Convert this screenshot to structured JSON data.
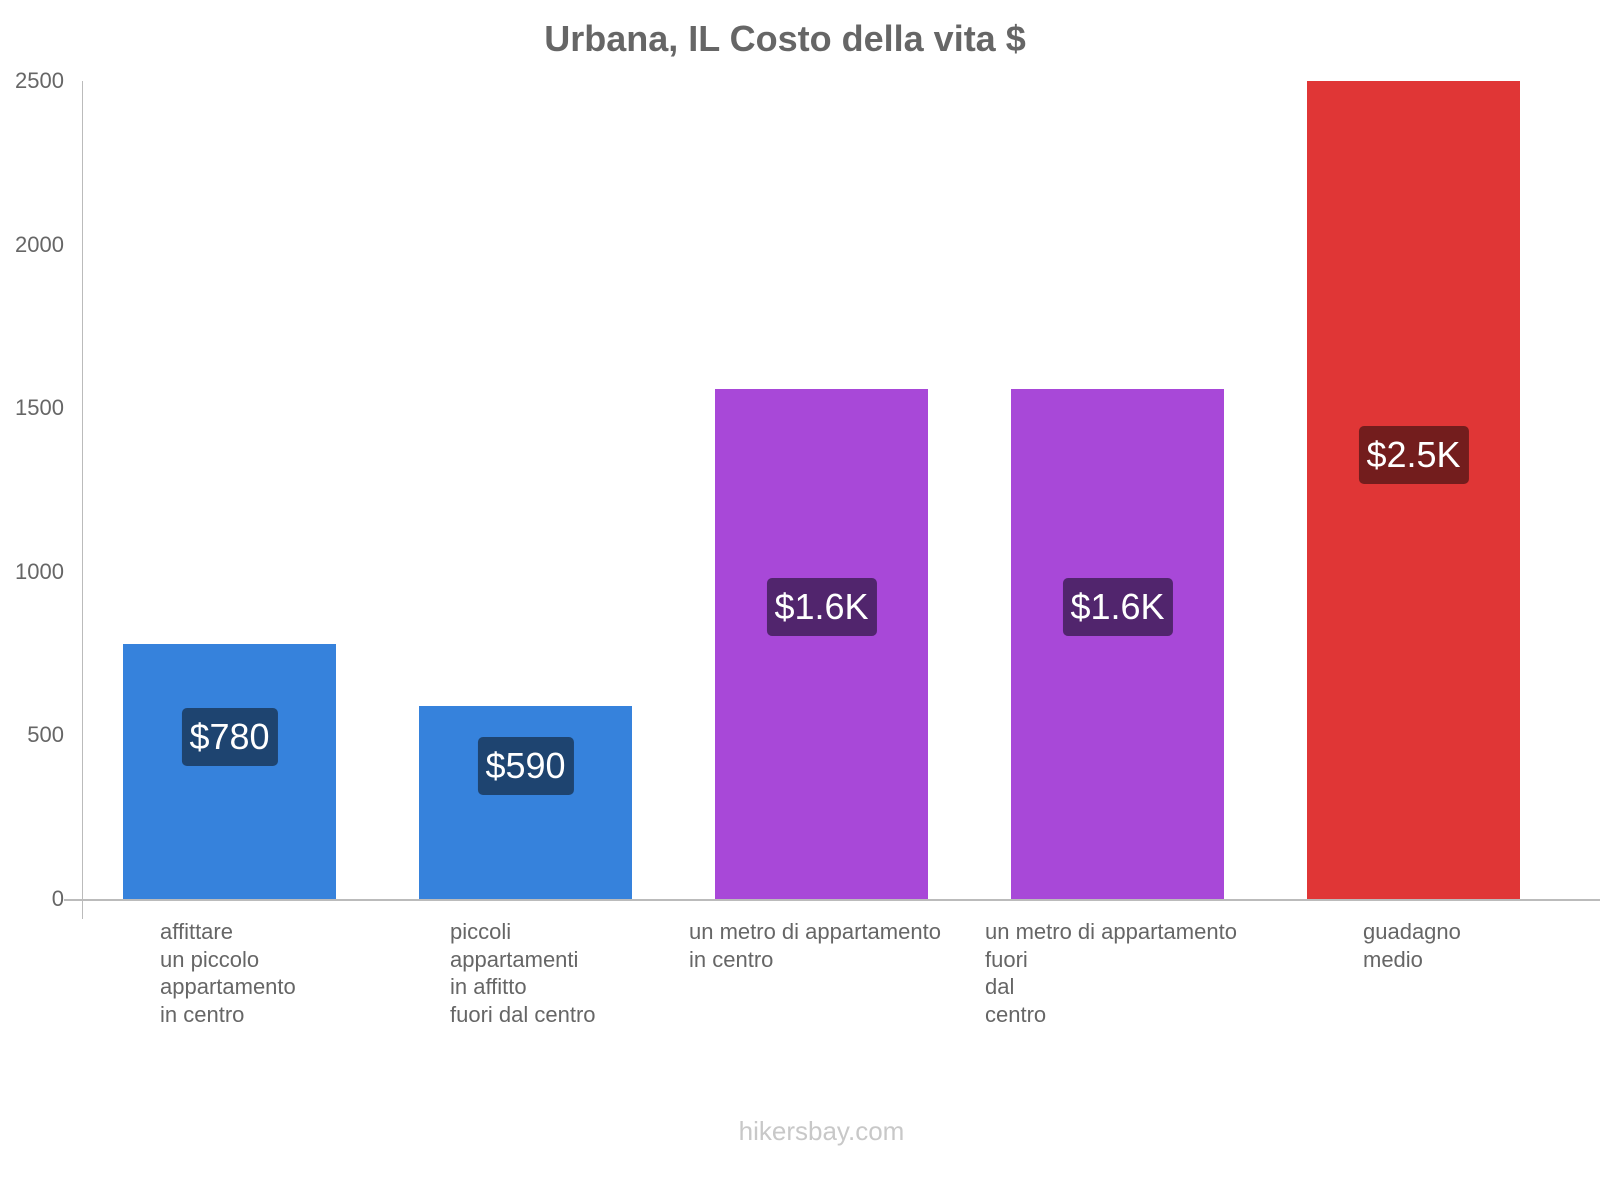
{
  "chart_data": {
    "type": "bar",
    "title": "Urbana, IL Costo della vita $",
    "xlabel": "",
    "ylabel": "",
    "ylim": [
      0,
      2500
    ],
    "yticks": [
      0,
      500,
      1000,
      1500,
      2000,
      2500
    ],
    "grid": false,
    "legend": null,
    "categories": [
      "affittare un piccolo appartamento in centro",
      "piccoli appartamenti in affitto fuori dal centro",
      "un metro di appartamento in centro",
      "un metro di appartamento fuori dal centro",
      "guadagno medio"
    ],
    "values": [
      780,
      590,
      1560,
      1560,
      2500
    ],
    "data_labels": [
      "$780",
      "$590",
      "$1.6K",
      "$1.6K",
      "$2.5K"
    ],
    "colors": [
      "#3682dc",
      "#3682dc",
      "#a848d8",
      "#a848d8",
      "#e03636"
    ],
    "label_box_colors": [
      "#1e4470",
      "#1e4470",
      "#51256d",
      "#51256d",
      "#731d1d"
    ]
  },
  "title": "Urbana, IL Costo della vita $",
  "y_ticks": [
    "0",
    "500",
    "1000",
    "1500",
    "2000",
    "2500"
  ],
  "bars": [
    {
      "label_lines": "affittare\nun piccolo\nappartamento\nin centro",
      "value_label": "$780"
    },
    {
      "label_lines": "piccoli\nappartamenti\nin affitto\nfuori dal centro",
      "value_label": "$590"
    },
    {
      "label_lines": "un metro di appartamento\nin centro",
      "value_label": "$1.6K"
    },
    {
      "label_lines": "un metro di appartamento\nfuori\ndal\ncentro",
      "value_label": "$1.6K"
    },
    {
      "label_lines": "guadagno\nmedio",
      "value_label": "$2.5K"
    }
  ],
  "footer": "hikersbay.com"
}
